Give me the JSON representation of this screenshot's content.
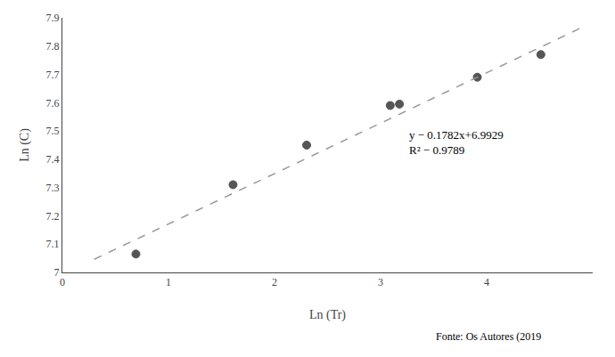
{
  "chart_data": {
    "type": "scatter",
    "xlabel": "Ln (Tr)",
    "ylabel": "Ln (C)",
    "series": [
      {
        "type": "scatter",
        "x": [
          0.693,
          1.609,
          2.303,
          3.091,
          3.178,
          3.912,
          4.511
        ],
        "values": [
          7.065,
          7.31,
          7.45,
          7.59,
          7.595,
          7.69,
          7.77
        ],
        "color": "#555555",
        "marker": "circle"
      },
      {
        "type": "line",
        "x": [
          0.3,
          4.9
        ],
        "values": [
          7.04636,
          7.86608
        ],
        "color": "#999999",
        "line_style": "dashed"
      }
    ],
    "annotations": [
      {
        "text": "y − 0.1782x+6.9929\nR² − 0.9789",
        "x": 3.25,
        "y": 7.515
      },
      {
        "text": "Fonte: Os Autores (2019"
      }
    ],
    "xlim": [
      0,
      5
    ],
    "ylim": [
      7.0,
      7.9
    ],
    "xticks": [
      0,
      1,
      2,
      3,
      4
    ],
    "yticks": [
      7,
      7.1,
      7.2,
      7.3,
      7.4,
      7.5,
      7.6,
      7.7,
      7.8,
      7.9
    ],
    "grid": false
  }
}
